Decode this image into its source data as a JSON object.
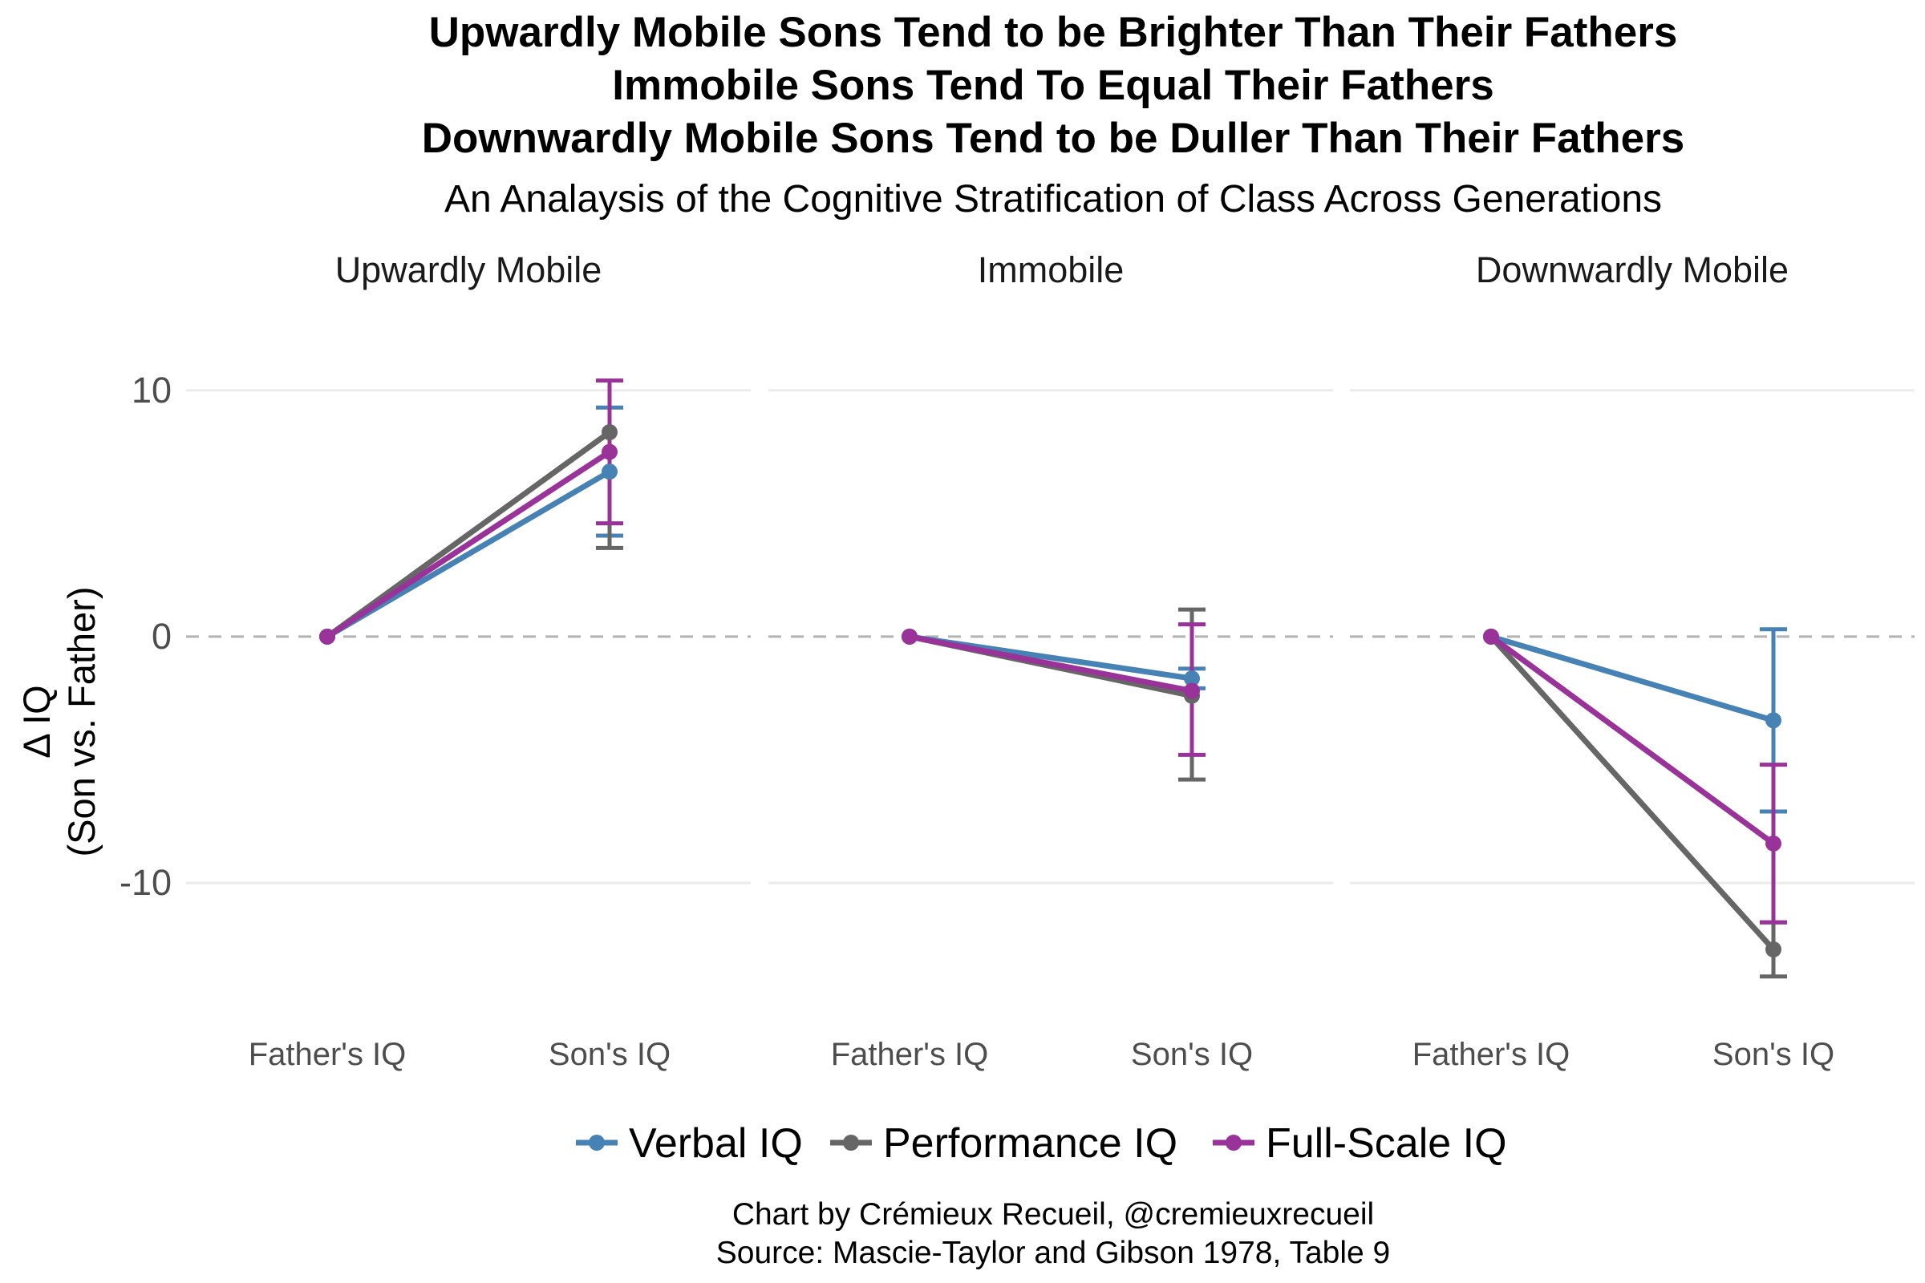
{
  "titles": {
    "line1": "Upwardly Mobile Sons Tend to be Brighter Than Their Fathers",
    "line2": "Immobile Sons Tend To Equal Their Fathers",
    "line3": "Downwardly Mobile Sons Tend to be Duller Than Their Fathers",
    "subtitle": "An Analaysis of the Cognitive Stratification of Class Across Generations"
  },
  "caption": {
    "line1": "Chart by Crémieux Recueil, @cremieuxrecueil",
    "line2": "Source: Mascie-Taylor and Gibson 1978, Table 9"
  },
  "chart_data": {
    "type": "line",
    "ylabel_line1": "Δ IQ",
    "ylabel_line2": "(Son vs. Father)",
    "ylim": [
      -15.5,
      12.5
    ],
    "y_ticks": [
      10,
      0,
      -10
    ],
    "y_tick_labels": [
      "10",
      "0",
      "-10"
    ],
    "categories": [
      "Father's IQ",
      "Son's IQ"
    ],
    "reference_line": 0,
    "facets": [
      {
        "label": "Upwardly Mobile",
        "series": [
          {
            "name": "Verbal IQ",
            "values": [
              0,
              6.7
            ],
            "son_ci": [
              4.1,
              9.3
            ]
          },
          {
            "name": "Performance IQ",
            "values": [
              0,
              8.3
            ],
            "son_ci": [
              3.6,
              10.4
            ]
          },
          {
            "name": "Full-Scale IQ",
            "values": [
              0,
              7.5
            ],
            "son_ci": [
              4.6,
              10.4
            ]
          }
        ]
      },
      {
        "label": "Immobile",
        "series": [
          {
            "name": "Verbal IQ",
            "values": [
              0,
              -1.7
            ],
            "son_ci": [
              -2.1,
              -1.3
            ]
          },
          {
            "name": "Performance IQ",
            "values": [
              0,
              -2.4
            ],
            "son_ci": [
              -5.8,
              1.1
            ]
          },
          {
            "name": "Full-Scale IQ",
            "values": [
              0,
              -2.2
            ],
            "son_ci": [
              -4.8,
              0.5
            ]
          }
        ]
      },
      {
        "label": "Downwardly Mobile",
        "series": [
          {
            "name": "Verbal IQ",
            "values": [
              0,
              -3.4
            ],
            "son_ci": [
              -7.1,
              0.3
            ]
          },
          {
            "name": "Performance IQ",
            "values": [
              0,
              -12.7
            ],
            "son_ci": [
              -13.8,
              -11.6
            ]
          },
          {
            "name": "Full-Scale IQ",
            "values": [
              0,
              -8.4
            ],
            "son_ci": [
              -11.6,
              -5.2
            ]
          }
        ]
      }
    ],
    "legend": [
      {
        "name": "Verbal IQ",
        "color": "#4682b4"
      },
      {
        "name": "Performance IQ",
        "color": "#666666"
      },
      {
        "name": "Full-Scale IQ",
        "color": "#993399"
      }
    ],
    "legend_position": "bottom"
  }
}
